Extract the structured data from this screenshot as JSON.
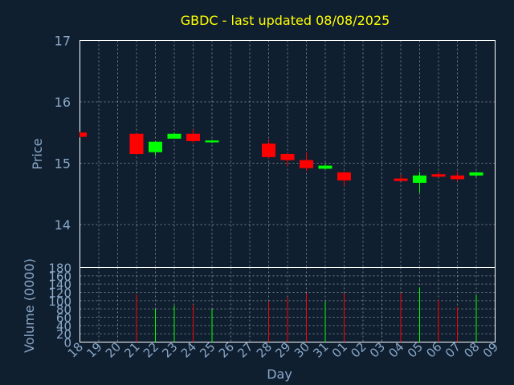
{
  "chart_data": {
    "type": "candlestick",
    "title": "GBDC - last updated 08/08/2025",
    "xlabel": "Day",
    "price_ylabel": "Price",
    "volume_ylabel": "Volume (0000)",
    "price_ylim": [
      13.3,
      17
    ],
    "price_ticks": [
      14,
      15,
      16,
      17
    ],
    "volume_ylim": [
      0,
      180
    ],
    "volume_ticks": [
      0,
      20,
      40,
      60,
      80,
      100,
      120,
      140,
      160,
      180
    ],
    "x_labels": [
      "18",
      "19",
      "20",
      "21",
      "22",
      "23",
      "24",
      "25",
      "26",
      "27",
      "28",
      "29",
      "30",
      "31",
      "01",
      "02",
      "03",
      "04",
      "05",
      "06",
      "07",
      "08",
      "09"
    ],
    "colors": {
      "up": "#00ff00",
      "down": "#ff0000",
      "background": "#0f1f30",
      "axis": "#8aa8c8",
      "title": "#ffff00",
      "grid": "#c8c8c8"
    },
    "candles": [
      {
        "x": "18",
        "open": 15.5,
        "high": 15.51,
        "low": 15.42,
        "close": 15.43
      },
      {
        "x": "21",
        "open": 15.48,
        "high": 15.5,
        "low": 15.14,
        "close": 15.15
      },
      {
        "x": "22",
        "open": 15.18,
        "high": 15.36,
        "low": 15.12,
        "close": 15.35
      },
      {
        "x": "23",
        "open": 15.4,
        "high": 15.5,
        "low": 15.4,
        "close": 15.48
      },
      {
        "x": "24",
        "open": 15.48,
        "high": 15.55,
        "low": 15.33,
        "close": 15.36
      },
      {
        "x": "25",
        "open": 15.34,
        "high": 15.38,
        "low": 15.33,
        "close": 15.37
      },
      {
        "x": "28",
        "open": 15.32,
        "high": 15.39,
        "low": 15.08,
        "close": 15.1
      },
      {
        "x": "29",
        "open": 15.15,
        "high": 15.16,
        "low": 14.95,
        "close": 15.05
      },
      {
        "x": "30",
        "open": 15.05,
        "high": 15.18,
        "low": 14.87,
        "close": 14.92
      },
      {
        "x": "31",
        "open": 14.91,
        "high": 14.99,
        "low": 14.9,
        "close": 14.96
      },
      {
        "x": "01",
        "open": 14.85,
        "high": 14.86,
        "low": 14.63,
        "close": 14.72
      },
      {
        "x": "04",
        "open": 14.75,
        "high": 14.81,
        "low": 14.71,
        "close": 14.71
      },
      {
        "x": "05",
        "open": 14.68,
        "high": 14.86,
        "low": 14.52,
        "close": 14.8
      },
      {
        "x": "06",
        "open": 14.82,
        "high": 14.86,
        "low": 14.77,
        "close": 14.78
      },
      {
        "x": "07",
        "open": 14.8,
        "high": 14.86,
        "low": 14.7,
        "close": 14.74
      },
      {
        "x": "08",
        "open": 14.8,
        "high": 14.86,
        "low": 14.78,
        "close": 14.85
      }
    ],
    "volume": [
      {
        "x": "18",
        "value": 0
      },
      {
        "x": "21",
        "value": 115
      },
      {
        "x": "22",
        "value": 80
      },
      {
        "x": "23",
        "value": 88
      },
      {
        "x": "24",
        "value": 90
      },
      {
        "x": "25",
        "value": 80
      },
      {
        "x": "28",
        "value": 98
      },
      {
        "x": "29",
        "value": 108
      },
      {
        "x": "30",
        "value": 118
      },
      {
        "x": "31",
        "value": 98
      },
      {
        "x": "01",
        "value": 118
      },
      {
        "x": "04",
        "value": 118
      },
      {
        "x": "05",
        "value": 132
      },
      {
        "x": "06",
        "value": 102
      },
      {
        "x": "07",
        "value": 85
      },
      {
        "x": "08",
        "value": 115
      }
    ]
  }
}
